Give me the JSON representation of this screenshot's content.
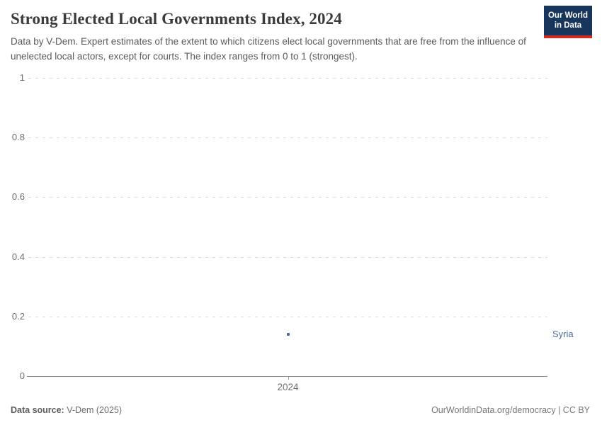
{
  "header": {
    "title": "Strong Elected Local Governments Index, 2024",
    "subtitle": "Data by V-Dem. Expert estimates of the extent to which citizens elect local governments that are free from the influence of unelected local actors, except for courts. The index ranges from 0 to 1 (strongest).",
    "logo": {
      "line1": "Our World",
      "line2": "in Data",
      "bg": "#18355c",
      "accent": "#d42b21"
    }
  },
  "chart_data": {
    "type": "scatter",
    "title": "Strong Elected Local Governments Index, 2024",
    "x": [
      2024
    ],
    "xticks": [
      "2024"
    ],
    "series": [
      {
        "name": "Syria",
        "values": [
          0.14
        ]
      }
    ],
    "ylim": [
      0,
      1
    ],
    "ytick_values": [
      0,
      0.2,
      0.4,
      0.6,
      0.8,
      1
    ],
    "ytick_labels": [
      "0",
      "0.2",
      "0.4",
      "0.6",
      "0.8",
      "1"
    ],
    "grid": "horizontal-dashed",
    "legend": "entity-label-right",
    "point_color": "#4c6a9c",
    "xlabel": "",
    "ylabel": ""
  },
  "footer": {
    "source_label": "Data source:",
    "source_value": " V-Dem (2025)",
    "right_text": "OurWorldinData.org/democracy | CC BY"
  }
}
